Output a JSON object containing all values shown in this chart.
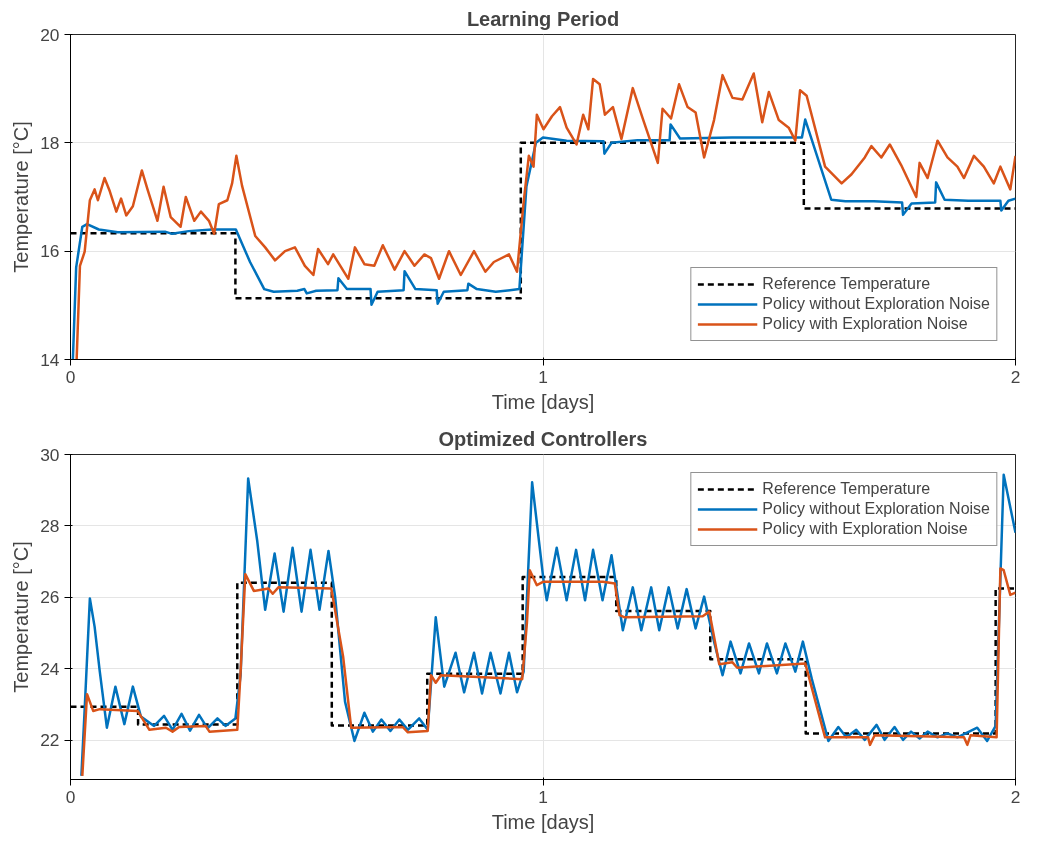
{
  "chart_data": [
    {
      "type": "line",
      "title": "Learning Period",
      "xlabel": "Time [days]",
      "ylabel": "Temperature [°C]",
      "xlim": [
        0,
        2
      ],
      "xticks": [
        0,
        1,
        2
      ],
      "ylim": [
        14,
        20
      ],
      "yticks": [
        14,
        16,
        18,
        20
      ],
      "grid": true,
      "legend": "bottom right",
      "series": [
        {
          "name": "Reference Temperature",
          "color": "#000000",
          "line_style": "dashed",
          "x": [
            0,
            0.349,
            0.349,
            0.953,
            0.953,
            1.552,
            1.552,
            2
          ],
          "values": [
            16.33,
            16.33,
            15.13,
            15.13,
            18.0,
            18.0,
            16.79,
            16.79
          ]
        },
        {
          "name": "Policy without Exploration Noise",
          "color": "#0072bd",
          "line_style": "solid",
          "x": [
            0.005,
            0.012,
            0.025,
            0.035,
            0.06,
            0.1,
            0.2,
            0.215,
            0.25,
            0.3,
            0.35,
            0.38,
            0.41,
            0.43,
            0.48,
            0.495,
            0.5,
            0.52,
            0.565,
            0.567,
            0.585,
            0.635,
            0.637,
            0.65,
            0.705,
            0.707,
            0.73,
            0.775,
            0.777,
            0.79,
            0.84,
            0.842,
            0.86,
            0.9,
            0.95,
            0.965,
            0.985,
            1.0,
            1.05,
            1.128,
            1.13,
            1.145,
            1.2,
            1.268,
            1.27,
            1.29,
            1.4,
            1.548,
            1.555,
            1.61,
            1.64,
            1.7,
            1.76,
            1.762,
            1.78,
            1.83,
            1.832,
            1.85,
            1.9,
            1.968,
            1.97,
            1.985,
            2.0
          ],
          "values": [
            14.0,
            15.7,
            16.45,
            16.5,
            16.4,
            16.35,
            16.36,
            16.32,
            16.37,
            16.4,
            16.4,
            15.8,
            15.3,
            15.25,
            15.27,
            15.3,
            15.22,
            15.27,
            15.28,
            15.5,
            15.3,
            15.3,
            15.01,
            15.25,
            15.28,
            15.63,
            15.3,
            15.28,
            15.03,
            15.25,
            15.28,
            15.4,
            15.3,
            15.25,
            15.3,
            17.2,
            18.0,
            18.1,
            18.04,
            18.03,
            17.8,
            18.0,
            18.05,
            18.05,
            18.34,
            18.08,
            18.1,
            18.1,
            18.43,
            16.95,
            16.92,
            16.92,
            16.9,
            16.67,
            16.88,
            16.9,
            17.27,
            16.95,
            16.93,
            16.93,
            16.75,
            16.93,
            16.97
          ]
        },
        {
          "name": "Policy with Exploration Noise",
          "color": "#d95319",
          "line_style": "solid",
          "x": [
            0.013,
            0.02,
            0.03,
            0.041,
            0.051,
            0.058,
            0.072,
            0.083,
            0.097,
            0.107,
            0.118,
            0.132,
            0.151,
            0.163,
            0.184,
            0.197,
            0.212,
            0.233,
            0.244,
            0.262,
            0.276,
            0.293,
            0.304,
            0.314,
            0.332,
            0.342,
            0.351,
            0.363,
            0.391,
            0.412,
            0.433,
            0.454,
            0.475,
            0.496,
            0.514,
            0.524,
            0.545,
            0.556,
            0.588,
            0.602,
            0.622,
            0.643,
            0.661,
            0.686,
            0.707,
            0.728,
            0.749,
            0.763,
            0.78,
            0.801,
            0.826,
            0.854,
            0.878,
            0.896,
            0.928,
            0.945,
            0.959,
            0.97,
            0.98,
            0.987,
            1.001,
            1.019,
            1.036,
            1.05,
            1.071,
            1.085,
            1.096,
            1.106,
            1.12,
            1.131,
            1.148,
            1.166,
            1.19,
            1.211,
            1.243,
            1.253,
            1.271,
            1.288,
            1.306,
            1.323,
            1.341,
            1.362,
            1.38,
            1.401,
            1.422,
            1.446,
            1.464,
            1.478,
            1.499,
            1.52,
            1.534,
            1.544,
            1.558,
            1.597,
            1.632,
            1.653,
            1.681,
            1.695,
            1.716,
            1.734,
            1.758,
            1.79,
            1.797,
            1.814,
            1.835,
            1.856,
            1.877,
            1.891,
            1.912,
            1.933,
            1.954,
            1.968,
            1.989,
            2.0
          ],
          "values": [
            14.0,
            15.73,
            15.99,
            16.94,
            17.14,
            16.94,
            17.35,
            17.11,
            16.73,
            16.97,
            16.66,
            16.83,
            17.49,
            17.14,
            16.56,
            17.19,
            16.63,
            16.45,
            17.0,
            16.56,
            16.73,
            16.56,
            16.32,
            16.87,
            16.94,
            17.25,
            17.76,
            17.21,
            16.28,
            16.07,
            15.83,
            16.0,
            16.07,
            15.73,
            15.56,
            16.04,
            15.76,
            15.94,
            15.49,
            16.07,
            15.76,
            15.73,
            16.11,
            15.66,
            16.0,
            15.73,
            15.94,
            15.87,
            15.49,
            16.0,
            15.56,
            16.0,
            15.62,
            15.8,
            15.94,
            15.62,
            16.9,
            17.76,
            17.56,
            18.52,
            18.25,
            18.49,
            18.66,
            18.28,
            17.97,
            18.52,
            18.25,
            19.18,
            19.08,
            18.52,
            18.66,
            18.07,
            19.01,
            18.45,
            17.63,
            18.63,
            18.45,
            19.08,
            18.66,
            18.56,
            17.73,
            18.42,
            19.25,
            18.83,
            18.8,
            19.28,
            18.38,
            18.94,
            18.42,
            18.28,
            18.04,
            18.97,
            18.87,
            17.56,
            17.25,
            17.42,
            17.73,
            17.94,
            17.73,
            17.97,
            17.59,
            17.0,
            17.63,
            17.35,
            18.04,
            17.73,
            17.56,
            17.35,
            17.76,
            17.56,
            17.25,
            17.56,
            17.14,
            17.76
          ]
        }
      ]
    },
    {
      "type": "line",
      "title": "Optimized Controllers",
      "xlabel": "Time [days]",
      "ylabel": "Temperature [°C]",
      "xlim": [
        0,
        2
      ],
      "xticks": [
        0,
        1,
        2
      ],
      "ylim": [
        20.9,
        30
      ],
      "yticks": [
        22,
        24,
        26,
        28,
        30
      ],
      "grid": true,
      "legend": "top right",
      "series": [
        {
          "name": "Reference Temperature",
          "color": "#000000",
          "line_style": "dashed",
          "x": [
            0,
            0.143,
            0.143,
            0.353,
            0.353,
            0.553,
            0.553,
            0.755,
            0.755,
            0.957,
            0.957,
            1.155,
            1.155,
            1.354,
            1.354,
            1.556,
            1.556,
            1.958,
            1.958,
            2
          ],
          "values": [
            22.94,
            22.94,
            22.44,
            22.44,
            26.41,
            26.41,
            22.41,
            22.41,
            23.86,
            23.86,
            26.57,
            26.57,
            25.62,
            25.62,
            24.27,
            24.27,
            22.19,
            22.19,
            26.25,
            26.25
          ]
        },
        {
          "name": "Policy without Exploration Noise",
          "color": "#0072bd",
          "line_style": "solid",
          "x": [
            0.023,
            0.03,
            0.041,
            0.051,
            0.062,
            0.077,
            0.095,
            0.114,
            0.132,
            0.149,
            0.177,
            0.198,
            0.216,
            0.235,
            0.253,
            0.272,
            0.29,
            0.311,
            0.328,
            0.349,
            0.36,
            0.376,
            0.395,
            0.412,
            0.432,
            0.451,
            0.47,
            0.489,
            0.508,
            0.527,
            0.546,
            0.56,
            0.581,
            0.601,
            0.622,
            0.64,
            0.658,
            0.677,
            0.696,
            0.714,
            0.738,
            0.756,
            0.773,
            0.791,
            0.815,
            0.833,
            0.854,
            0.871,
            0.889,
            0.91,
            0.928,
            0.945,
            0.959,
            0.977,
            1.001,
            1.008,
            1.029,
            1.05,
            1.07,
            1.089,
            1.106,
            1.126,
            1.145,
            1.169,
            1.19,
            1.208,
            1.229,
            1.246,
            1.266,
            1.285,
            1.304,
            1.323,
            1.341,
            1.362,
            1.38,
            1.397,
            1.418,
            1.436,
            1.457,
            1.474,
            1.495,
            1.513,
            1.534,
            1.55,
            1.569,
            1.604,
            1.625,
            1.642,
            1.663,
            1.681,
            1.706,
            1.723,
            1.744,
            1.762,
            1.779,
            1.797,
            1.814,
            1.835,
            1.856,
            1.877,
            1.919,
            1.94,
            1.958,
            1.975,
            2.0
          ],
          "values": [
            21.0,
            22.87,
            25.97,
            25.18,
            23.92,
            22.35,
            23.5,
            22.45,
            23.5,
            22.66,
            22.4,
            22.68,
            22.29,
            22.74,
            22.27,
            22.71,
            22.33,
            22.61,
            22.4,
            22.61,
            23.82,
            29.33,
            27.6,
            25.65,
            27.23,
            25.6,
            27.39,
            25.6,
            27.33,
            25.65,
            27.3,
            26.02,
            23.08,
            21.98,
            22.77,
            22.24,
            22.58,
            22.26,
            22.58,
            22.29,
            22.61,
            22.29,
            25.44,
            23.5,
            24.45,
            23.34,
            24.45,
            23.31,
            24.45,
            23.31,
            24.45,
            23.34,
            23.92,
            29.22,
            26.49,
            25.92,
            27.39,
            25.92,
            27.33,
            25.92,
            27.33,
            25.92,
            27.18,
            25.08,
            26.28,
            25.08,
            26.28,
            25.08,
            26.28,
            25.13,
            26.23,
            25.13,
            26.02,
            24.76,
            23.82,
            24.76,
            23.87,
            24.71,
            23.87,
            24.71,
            23.87,
            24.71,
            23.92,
            24.76,
            23.71,
            21.98,
            22.37,
            22.08,
            22.29,
            22.01,
            22.43,
            22.01,
            22.37,
            22.01,
            22.24,
            22.05,
            22.24,
            22.08,
            22.19,
            22.08,
            22.35,
            21.98,
            22.4,
            29.43,
            27.81
          ]
        },
        {
          "name": "Policy with Exploration Noise",
          "color": "#d95319",
          "line_style": "solid",
          "x": [
            0.025,
            0.035,
            0.048,
            0.062,
            0.142,
            0.167,
            0.202,
            0.216,
            0.23,
            0.286,
            0.294,
            0.353,
            0.36,
            0.37,
            0.388,
            0.419,
            0.428,
            0.44,
            0.552,
            0.577,
            0.594,
            0.703,
            0.714,
            0.756,
            0.763,
            0.773,
            0.784,
            0.956,
            0.966,
            0.972,
            0.987,
            1.001,
            1.127,
            1.152,
            1.162,
            1.173,
            1.338,
            1.352,
            1.373,
            1.401,
            1.411,
            1.555,
            1.597,
            1.688,
            1.692,
            1.702,
            1.891,
            1.898,
            1.905,
            1.96,
            1.968,
            1.975,
            1.989,
            2.0
          ],
          "values": [
            21.0,
            23.29,
            22.82,
            22.87,
            22.82,
            22.29,
            22.35,
            22.24,
            22.37,
            22.4,
            22.24,
            22.29,
            23.92,
            26.65,
            26.18,
            26.25,
            26.1,
            26.28,
            26.25,
            24.34,
            22.35,
            22.37,
            22.22,
            22.26,
            23.82,
            23.61,
            23.82,
            23.71,
            25.29,
            26.76,
            26.34,
            26.44,
            26.44,
            26.39,
            25.5,
            25.44,
            25.47,
            25.6,
            24.13,
            24.18,
            24.03,
            24.15,
            22.08,
            22.08,
            21.87,
            22.14,
            22.08,
            21.87,
            22.14,
            22.08,
            26.81,
            26.76,
            26.07,
            26.13
          ]
        }
      ]
    }
  ]
}
